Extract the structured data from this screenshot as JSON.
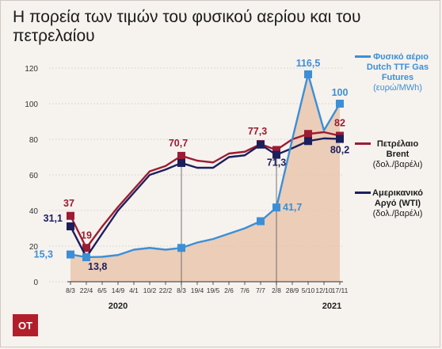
{
  "title": "Η πορεία των τιμών του φυσικού αερίου και του πετρελαίου",
  "logo": "OT",
  "colors": {
    "gas": "#3c8fd6",
    "brent": "#9b1c33",
    "wti": "#1c1f5c",
    "area": "#e8c3aa",
    "axis": "#555555",
    "grid": "#cfcfcf"
  },
  "legend": [
    {
      "series": "gas",
      "line1": "Φυσικό αέριο",
      "line2": "Dutch TTF Gas",
      "line3": "Futures",
      "line4": "(ευρώ/MWh)"
    },
    {
      "series": "brent",
      "line1": "Πετρέλαιο",
      "line2": "Brent",
      "line3": "(δολ./βαρέλι)",
      "line4": ""
    },
    {
      "series": "wti",
      "line1": "Αμερικανικό",
      "line2": "Αργό (WTI)",
      "line3": "(δολ./βαρέλι)",
      "line4": ""
    }
  ],
  "chart_data": {
    "type": "line",
    "x": [
      "8/3",
      "22/4",
      "6/5",
      "14/9",
      "4/1",
      "10/2",
      "22/2",
      "8/3",
      "19/4",
      "19/5",
      "2/6",
      "7/6",
      "7/7",
      "2/8",
      "28/9",
      "5/10",
      "12/10",
      "17/11"
    ],
    "year_labels": [
      {
        "label": "2020",
        "between": [
          "6/5",
          "4/1"
        ]
      },
      {
        "label": "2021",
        "between": [
          "12/10",
          "17/11"
        ]
      }
    ],
    "ylim": [
      0,
      120
    ],
    "yticks": [
      0,
      20,
      40,
      60,
      80,
      100,
      120
    ],
    "grid": true,
    "area_series": "gas",
    "series": [
      {
        "key": "gas",
        "values": [
          15.3,
          13.8,
          14,
          15,
          18,
          19,
          18,
          19,
          22,
          24,
          27,
          30,
          34,
          41.7,
          80,
          116.5,
          85,
          100
        ]
      },
      {
        "key": "brent",
        "values": [
          37,
          19,
          31,
          42,
          52,
          62,
          65,
          70.7,
          68,
          67,
          72,
          73,
          77.3,
          74,
          80,
          83,
          84,
          82
        ]
      },
      {
        "key": "wti",
        "values": [
          31.1,
          13.8,
          27,
          40,
          50,
          60,
          63,
          66.7,
          64,
          64,
          70,
          71,
          77,
          71.3,
          75,
          79,
          80.5,
          80.2
        ]
      }
    ],
    "point_labels": [
      {
        "series": "gas",
        "x": "8/3",
        "text": "15,3"
      },
      {
        "series": "wti",
        "x": "22/4",
        "text": "13,8"
      },
      {
        "series": "brent",
        "x": "8/3",
        "text": "37"
      },
      {
        "series": "wti",
        "x": "8/3",
        "text": "31,1"
      },
      {
        "series": "brent",
        "x": "22/4",
        "text": "19"
      },
      {
        "series": "brent",
        "x": "8/3#2",
        "text": "70,7"
      },
      {
        "series": "brent",
        "x": "7/7",
        "text": "77,3"
      },
      {
        "series": "wti",
        "x": "2/8",
        "text": "71,3"
      },
      {
        "series": "gas",
        "x": "2/8",
        "text": "41,7"
      },
      {
        "series": "gas",
        "x": "5/10",
        "text": "116,5"
      },
      {
        "series": "gas",
        "x": "17/11",
        "text": "100"
      },
      {
        "series": "brent",
        "x": "17/11",
        "text": "82"
      },
      {
        "series": "wti",
        "x": "17/11",
        "text": "80,2"
      }
    ],
    "markers": [
      0,
      1,
      7,
      12,
      13,
      15,
      17
    ]
  }
}
